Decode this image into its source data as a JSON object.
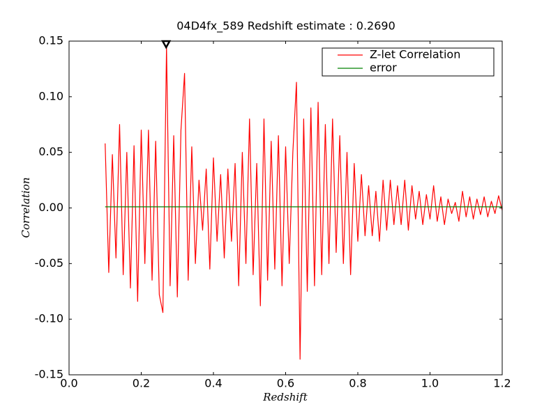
{
  "chart_data": {
    "type": "line",
    "title": "04D4fx_589 Redshift estimate : 0.2690",
    "xlabel": "Redshift",
    "ylabel": "Correlation",
    "xlim": [
      0,
      1.2
    ],
    "ylim": [
      -0.15,
      0.15
    ],
    "xticks": [
      {
        "value": 0,
        "label": "0.0"
      },
      0.2,
      0.4,
      0.6,
      0.8,
      {
        "value": 1,
        "label": "1.0"
      },
      1.2
    ],
    "yticks": [
      -0.15,
      {
        "value": -0.1,
        "label": "-0.10"
      },
      -0.05,
      {
        "value": 0,
        "label": "0.00"
      },
      0.05,
      {
        "value": 0.1,
        "label": "0.10"
      },
      0.15
    ],
    "legend": "upper right",
    "marker": {
      "x": 0.269,
      "y": 0.15,
      "color": "#000000"
    },
    "series": [
      {
        "name": "Z-let Correlation",
        "color": "#ff0000",
        "x": [
          0.1,
          0.11,
          0.12,
          0.13,
          0.14,
          0.15,
          0.16,
          0.17,
          0.18,
          0.19,
          0.2,
          0.21,
          0.22,
          0.23,
          0.24,
          0.25,
          0.26,
          0.27,
          0.28,
          0.29,
          0.3,
          0.31,
          0.32,
          0.33,
          0.34,
          0.35,
          0.36,
          0.37,
          0.38,
          0.39,
          0.4,
          0.41,
          0.42,
          0.43,
          0.44,
          0.45,
          0.46,
          0.47,
          0.48,
          0.49,
          0.5,
          0.51,
          0.52,
          0.53,
          0.54,
          0.55,
          0.56,
          0.57,
          0.58,
          0.59,
          0.6,
          0.61,
          0.62,
          0.63,
          0.64,
          0.65,
          0.66,
          0.67,
          0.68,
          0.69,
          0.7,
          0.71,
          0.72,
          0.73,
          0.74,
          0.75,
          0.76,
          0.77,
          0.78,
          0.79,
          0.8,
          0.81,
          0.82,
          0.83,
          0.84,
          0.85,
          0.86,
          0.87,
          0.88,
          0.89,
          0.9,
          0.91,
          0.92,
          0.93,
          0.94,
          0.95,
          0.96,
          0.97,
          0.98,
          0.99,
          1.0,
          1.01,
          1.02,
          1.03,
          1.04,
          1.05,
          1.06,
          1.07,
          1.08,
          1.09,
          1.1,
          1.11,
          1.12,
          1.13,
          1.14,
          1.15,
          1.16,
          1.17,
          1.18,
          1.19,
          1.2
        ],
        "values": [
          0.058,
          -0.058,
          0.048,
          -0.045,
          0.075,
          -0.06,
          0.05,
          -0.072,
          0.056,
          -0.084,
          0.07,
          -0.05,
          0.07,
          -0.065,
          0.06,
          -0.078,
          -0.094,
          0.145,
          -0.07,
          0.065,
          -0.08,
          0.07,
          0.121,
          -0.065,
          0.055,
          -0.05,
          0.025,
          -0.02,
          0.035,
          -0.055,
          0.045,
          -0.03,
          0.03,
          -0.045,
          0.035,
          -0.03,
          0.04,
          -0.07,
          0.05,
          -0.05,
          0.08,
          -0.06,
          0.04,
          -0.088,
          0.08,
          -0.065,
          0.06,
          -0.055,
          0.065,
          -0.07,
          0.055,
          -0.05,
          0.05,
          0.113,
          -0.136,
          0.08,
          -0.075,
          0.09,
          -0.07,
          0.095,
          -0.06,
          0.075,
          -0.05,
          0.08,
          -0.04,
          0.065,
          -0.05,
          0.05,
          -0.06,
          0.04,
          -0.03,
          0.03,
          -0.025,
          0.02,
          -0.025,
          0.015,
          -0.03,
          0.025,
          -0.02,
          0.025,
          -0.015,
          0.02,
          -0.015,
          0.025,
          -0.02,
          0.02,
          -0.01,
          0.015,
          -0.015,
          0.012,
          -0.01,
          0.02,
          -0.012,
          0.01,
          -0.015,
          0.008,
          -0.005,
          0.005,
          -0.012,
          0.015,
          -0.008,
          0.01,
          -0.01,
          0.008,
          -0.006,
          0.01,
          -0.008,
          0.006,
          -0.005,
          0.011,
          -0.002
        ]
      },
      {
        "name": "error",
        "color": "#008000",
        "x": [
          0.1,
          1.2
        ],
        "values": [
          0.001,
          0.001
        ]
      }
    ]
  }
}
